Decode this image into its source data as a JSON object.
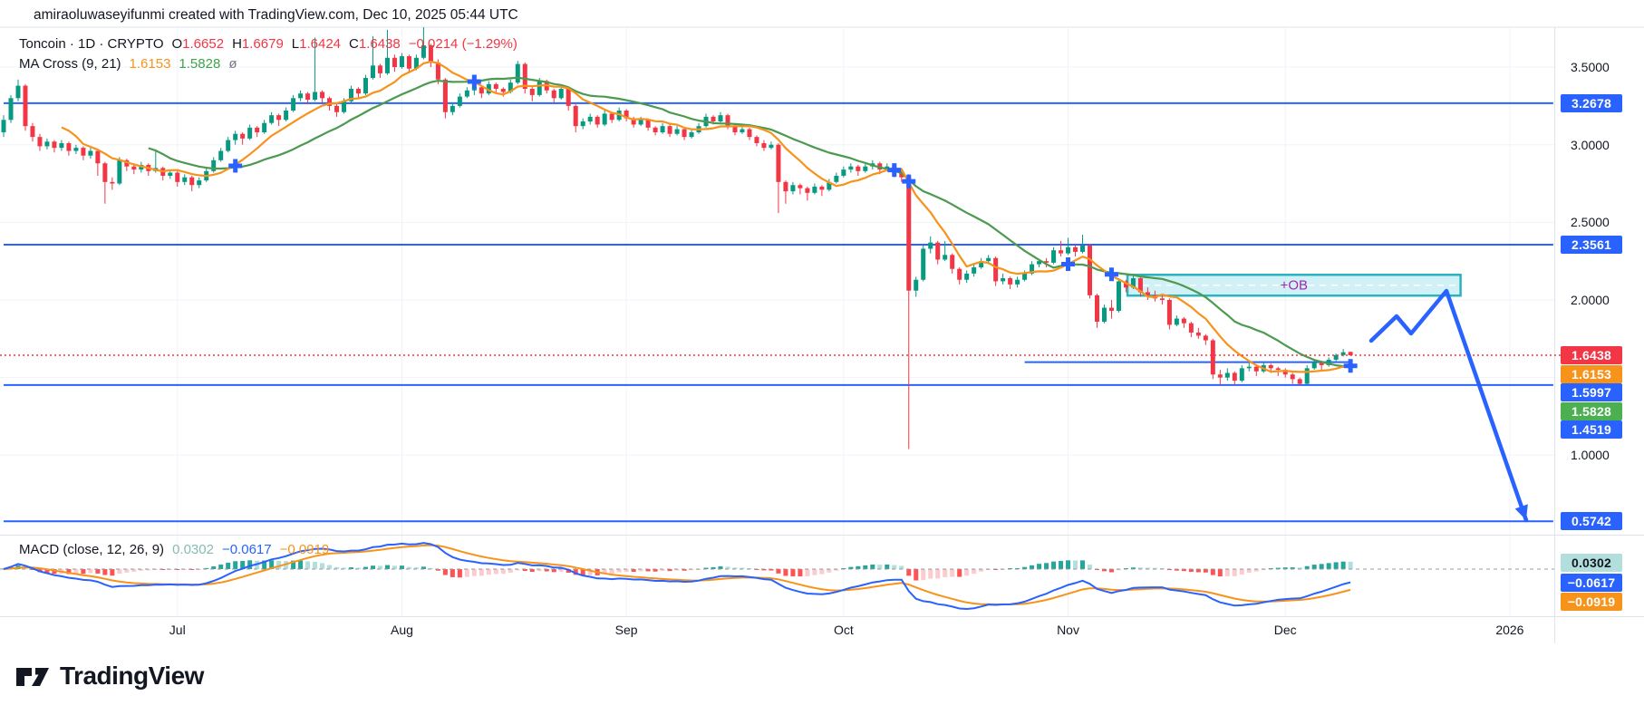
{
  "header": {
    "credit": "amiraoluwaseyifunmi created with TradingView.com, Dec 10, 2025 05:44 UTC"
  },
  "legend": {
    "symbol": {
      "title": "Toncoin · 1D · CRYPTO",
      "o_key": "O",
      "o_val": "1.6652",
      "h_key": "H",
      "h_val": "1.6679",
      "l_key": "L",
      "l_val": "1.6424",
      "c_key": "C",
      "c_val": "1.6438",
      "change": "−0.0214 (−1.29%)"
    },
    "ma": {
      "title": "MA Cross (9, 21)",
      "fast_val": "1.6153",
      "slow_val": "1.5828",
      "more": "ø"
    }
  },
  "macd_legend": {
    "title": "MACD (close, 12, 26, 9)",
    "hist_val": "0.0302",
    "macd_val": "−0.0617",
    "signal_val": "−0.0919"
  },
  "watermark": {
    "text": "TradingView"
  },
  "colors": {
    "up": "#089981",
    "down": "#F23645",
    "level_blue": "#2962FF",
    "ma_fast": "#F7931A",
    "ma_slow": "#4C9950",
    "macd_line": "#2962FF",
    "signal_line": "#F7931A",
    "hist_pos": "#26A69A",
    "hist_pos_weak": "#B2DFDB",
    "hist_neg": "#FF5252",
    "hist_neg_weak": "#FCCBCD",
    "ob_border": "#2BB3C0",
    "ob_fill": "rgba(76,200,220,0.25)",
    "ob_text": "#9C27B0",
    "grid": "#F0F3FA",
    "separator": "#E0E3EB",
    "current_dotted": "#F23645"
  },
  "price_axis": {
    "ticks": [
      {
        "text": "3.5000",
        "price": 3.5
      },
      {
        "text": "3.0000",
        "price": 3.0
      },
      {
        "text": "2.5000",
        "price": 2.5
      },
      {
        "text": "2.0000",
        "price": 2.0
      },
      {
        "text": "1.0000",
        "price": 1.0
      }
    ]
  },
  "time_axis": {
    "labels": [
      {
        "text": "Jul",
        "day": 24
      },
      {
        "text": "Aug",
        "day": 55
      },
      {
        "text": "Sep",
        "day": 86
      },
      {
        "text": "Oct",
        "day": 116
      },
      {
        "text": "Nov",
        "day": 147
      },
      {
        "text": "Dec",
        "day": 177
      },
      {
        "text": "2026",
        "day": 208
      }
    ]
  },
  "chart_data": {
    "type": "candlestick",
    "title": "Toncoin · 1D · CRYPTO",
    "ylim": [
      0.45,
      3.78
    ],
    "grid": true,
    "levels": [
      {
        "label": "3.2678",
        "price": 3.2678,
        "color": "#2962FF",
        "x1_day": 0,
        "x2_day": 214
      },
      {
        "label": "2.3561",
        "price": 2.3561,
        "color": "#2962FF",
        "x1_day": 0,
        "x2_day": 214
      },
      {
        "label": "1.5997",
        "price": 1.5997,
        "color": "#2962FF",
        "x1_day": 141,
        "x2_day": 186
      },
      {
        "label": "1.4519",
        "price": 1.4519,
        "color": "#2962FF",
        "x1_day": 0,
        "x2_day": 214
      },
      {
        "label": "0.5742",
        "price": 0.5742,
        "color": "#2962FF",
        "x1_day": 0,
        "x2_day": 214
      }
    ],
    "current_price": {
      "label": "1.6438",
      "price": 1.6438,
      "color": "#F23645"
    },
    "ma_badges": [
      {
        "label": "1.6153",
        "price": 1.6153,
        "color": "#F7931A"
      },
      {
        "label": "1.5828",
        "price": 1.5828,
        "color": "#4CAF50"
      }
    ],
    "ob_box": {
      "label": "+OB",
      "price_top": 2.162,
      "price_bottom": 2.028,
      "day_start": 155.2,
      "day_end": 201.2
    },
    "projection_arrow": {
      "points": [
        [
          1513,
          376
        ],
        [
          1541,
          349
        ],
        [
          1557,
          368
        ],
        [
          1596,
          321
        ],
        [
          1684,
          574
        ]
      ]
    },
    "macd": {
      "params": [
        12,
        26,
        9
      ],
      "source": "close",
      "badges": [
        {
          "label": "0.0302",
          "bg": "#B2DFDB",
          "fg": "#131722"
        },
        {
          "label": "−0.0617",
          "bg": "#2962FF",
          "fg": "#ffffff"
        },
        {
          "label": "−0.0919",
          "bg": "#F7931A",
          "fg": "#ffffff"
        }
      ]
    },
    "candles": [
      [
        3.08,
        3.19,
        3.05,
        3.16
      ],
      [
        3.16,
        3.32,
        3.14,
        3.3
      ],
      [
        3.3,
        3.42,
        3.28,
        3.38
      ],
      [
        3.38,
        3.39,
        3.09,
        3.12
      ],
      [
        3.12,
        3.14,
        3.02,
        3.05
      ],
      [
        3.05,
        3.07,
        2.96,
        2.99
      ],
      [
        2.99,
        3.04,
        2.97,
        3.02
      ],
      [
        3.02,
        3.03,
        2.95,
        2.98
      ],
      [
        2.98,
        3.03,
        2.96,
        3.01
      ],
      [
        3.01,
        3.02,
        2.93,
        2.96
      ],
      [
        2.96,
        3.0,
        2.94,
        2.98
      ],
      [
        2.98,
        2.99,
        2.9,
        2.93
      ],
      [
        2.93,
        2.98,
        2.91,
        2.96
      ],
      [
        2.96,
        2.97,
        2.8,
        2.88
      ],
      [
        2.88,
        2.89,
        2.62,
        2.76
      ],
      [
        2.76,
        2.79,
        2.71,
        2.75
      ],
      [
        2.75,
        2.92,
        2.74,
        2.9
      ],
      [
        2.9,
        2.91,
        2.83,
        2.86
      ],
      [
        2.86,
        2.88,
        2.81,
        2.84
      ],
      [
        2.84,
        2.89,
        2.82,
        2.87
      ],
      [
        2.87,
        2.88,
        2.8,
        2.83
      ],
      [
        2.83,
        2.97,
        2.82,
        2.85
      ],
      [
        2.85,
        2.86,
        2.77,
        2.8
      ],
      [
        2.8,
        2.84,
        2.78,
        2.82
      ],
      [
        2.82,
        2.83,
        2.73,
        2.76
      ],
      [
        2.76,
        2.81,
        2.74,
        2.79
      ],
      [
        2.79,
        2.8,
        2.7,
        2.74
      ],
      [
        2.74,
        2.79,
        2.72,
        2.77
      ],
      [
        2.77,
        2.85,
        2.76,
        2.83
      ],
      [
        2.83,
        2.92,
        2.82,
        2.9
      ],
      [
        2.9,
        2.98,
        2.89,
        2.96
      ],
      [
        2.96,
        3.05,
        2.95,
        3.03
      ],
      [
        3.03,
        3.09,
        3.0,
        3.07
      ],
      [
        3.07,
        3.08,
        3.0,
        3.04
      ],
      [
        3.04,
        3.13,
        3.03,
        3.11
      ],
      [
        3.11,
        3.12,
        3.05,
        3.08
      ],
      [
        3.08,
        3.16,
        3.07,
        3.14
      ],
      [
        3.14,
        3.21,
        3.13,
        3.19
      ],
      [
        3.19,
        3.2,
        3.12,
        3.16
      ],
      [
        3.16,
        3.24,
        3.15,
        3.22
      ],
      [
        3.22,
        3.32,
        3.21,
        3.3
      ],
      [
        3.3,
        3.35,
        3.28,
        3.33
      ],
      [
        3.33,
        3.34,
        3.26,
        3.29
      ],
      [
        3.29,
        3.69,
        3.28,
        3.34
      ],
      [
        3.34,
        3.35,
        3.27,
        3.3
      ],
      [
        3.3,
        3.31,
        3.22,
        3.25
      ],
      [
        3.25,
        3.27,
        3.18,
        3.21
      ],
      [
        3.21,
        3.3,
        3.2,
        3.28
      ],
      [
        3.28,
        3.38,
        3.27,
        3.36
      ],
      [
        3.36,
        3.37,
        3.3,
        3.33
      ],
      [
        3.33,
        3.45,
        3.32,
        3.43
      ],
      [
        3.43,
        3.7,
        3.42,
        3.51
      ],
      [
        3.51,
        3.52,
        3.43,
        3.46
      ],
      [
        3.46,
        3.74,
        3.45,
        3.56
      ],
      [
        3.56,
        3.58,
        3.47,
        3.5
      ],
      [
        3.5,
        3.59,
        3.49,
        3.57
      ],
      [
        3.57,
        3.58,
        3.46,
        3.49
      ],
      [
        3.49,
        3.58,
        3.48,
        3.56
      ],
      [
        3.56,
        3.76,
        3.55,
        3.64
      ],
      [
        3.64,
        3.65,
        3.5,
        3.53
      ],
      [
        3.53,
        3.55,
        3.39,
        3.42
      ],
      [
        3.42,
        3.43,
        3.17,
        3.21
      ],
      [
        3.21,
        3.27,
        3.19,
        3.25
      ],
      [
        3.25,
        3.33,
        3.24,
        3.31
      ],
      [
        3.31,
        3.37,
        3.3,
        3.35
      ],
      [
        3.35,
        3.39,
        3.32,
        3.37
      ],
      [
        3.37,
        3.38,
        3.3,
        3.33
      ],
      [
        3.33,
        3.41,
        3.32,
        3.39
      ],
      [
        3.39,
        3.4,
        3.33,
        3.36
      ],
      [
        3.36,
        3.37,
        3.31,
        3.34
      ],
      [
        3.34,
        3.42,
        3.33,
        3.4
      ],
      [
        3.4,
        3.54,
        3.39,
        3.52
      ],
      [
        3.52,
        3.53,
        3.33,
        3.36
      ],
      [
        3.36,
        3.37,
        3.28,
        3.32
      ],
      [
        3.32,
        3.43,
        3.31,
        3.41
      ],
      [
        3.41,
        3.42,
        3.33,
        3.35
      ],
      [
        3.35,
        3.36,
        3.27,
        3.3
      ],
      [
        3.3,
        3.38,
        3.29,
        3.36
      ],
      [
        3.36,
        3.37,
        3.22,
        3.25
      ],
      [
        3.25,
        3.26,
        3.08,
        3.12
      ],
      [
        3.12,
        3.17,
        3.1,
        3.15
      ],
      [
        3.15,
        3.2,
        3.13,
        3.18
      ],
      [
        3.18,
        3.19,
        3.11,
        3.13
      ],
      [
        3.13,
        3.22,
        3.12,
        3.2
      ],
      [
        3.2,
        3.21,
        3.14,
        3.16
      ],
      [
        3.16,
        3.24,
        3.15,
        3.22
      ],
      [
        3.22,
        3.23,
        3.15,
        3.17
      ],
      [
        3.17,
        3.18,
        3.11,
        3.13
      ],
      [
        3.13,
        3.18,
        3.12,
        3.16
      ],
      [
        3.16,
        3.17,
        3.09,
        3.11
      ],
      [
        3.11,
        3.12,
        3.06,
        3.08
      ],
      [
        3.08,
        3.14,
        3.07,
        3.12
      ],
      [
        3.12,
        3.13,
        3.05,
        3.07
      ],
      [
        3.07,
        3.12,
        3.06,
        3.1
      ],
      [
        3.1,
        3.11,
        3.03,
        3.05
      ],
      [
        3.05,
        3.1,
        3.04,
        3.08
      ],
      [
        3.08,
        3.14,
        3.07,
        3.12
      ],
      [
        3.12,
        3.2,
        3.11,
        3.18
      ],
      [
        3.18,
        3.19,
        3.13,
        3.15
      ],
      [
        3.15,
        3.21,
        3.14,
        3.19
      ],
      [
        3.19,
        3.2,
        3.1,
        3.12
      ],
      [
        3.12,
        3.13,
        3.06,
        3.08
      ],
      [
        3.08,
        3.12,
        3.07,
        3.1
      ],
      [
        3.1,
        3.11,
        3.03,
        3.05
      ],
      [
        3.05,
        3.06,
        2.99,
        3.01
      ],
      [
        3.01,
        3.03,
        2.96,
        2.98
      ],
      [
        2.98,
        3.02,
        2.97,
        3.0
      ],
      [
        3.0,
        3.01,
        2.56,
        2.76
      ],
      [
        2.76,
        2.77,
        2.62,
        2.7
      ],
      [
        2.7,
        2.76,
        2.68,
        2.74
      ],
      [
        2.74,
        2.75,
        2.68,
        2.72
      ],
      [
        2.72,
        2.73,
        2.64,
        2.69
      ],
      [
        2.69,
        2.75,
        2.68,
        2.73
      ],
      [
        2.73,
        2.74,
        2.67,
        2.71
      ],
      [
        2.71,
        2.78,
        2.7,
        2.76
      ],
      [
        2.76,
        2.82,
        2.75,
        2.8
      ],
      [
        2.8,
        2.86,
        2.79,
        2.84
      ],
      [
        2.84,
        2.88,
        2.82,
        2.86
      ],
      [
        2.86,
        2.87,
        2.8,
        2.83
      ],
      [
        2.83,
        2.88,
        2.82,
        2.86
      ],
      [
        2.86,
        2.9,
        2.84,
        2.88
      ],
      [
        2.88,
        2.89,
        2.81,
        2.84
      ],
      [
        2.84,
        2.88,
        2.83,
        2.86
      ],
      [
        2.86,
        2.87,
        2.79,
        2.82
      ],
      [
        2.82,
        2.83,
        2.76,
        2.79
      ],
      [
        2.79,
        2.81,
        1.04,
        2.06
      ],
      [
        2.06,
        2.15,
        2.02,
        2.13
      ],
      [
        2.13,
        2.35,
        2.12,
        2.33
      ],
      [
        2.33,
        2.41,
        2.3,
        2.37
      ],
      [
        2.37,
        2.38,
        2.23,
        2.26
      ],
      [
        2.26,
        2.38,
        2.25,
        2.29
      ],
      [
        2.29,
        2.3,
        2.17,
        2.2
      ],
      [
        2.2,
        2.21,
        2.1,
        2.13
      ],
      [
        2.13,
        2.19,
        2.11,
        2.17
      ],
      [
        2.17,
        2.23,
        2.15,
        2.21
      ],
      [
        2.21,
        2.27,
        2.2,
        2.25
      ],
      [
        2.25,
        2.29,
        2.23,
        2.27
      ],
      [
        2.27,
        2.28,
        2.09,
        2.12
      ],
      [
        2.12,
        2.17,
        2.1,
        2.14
      ],
      [
        2.14,
        2.15,
        2.07,
        2.1
      ],
      [
        2.1,
        2.15,
        2.08,
        2.13
      ],
      [
        2.13,
        2.19,
        2.12,
        2.17
      ],
      [
        2.17,
        2.25,
        2.16,
        2.23
      ],
      [
        2.23,
        2.26,
        2.21,
        2.25
      ],
      [
        2.25,
        2.27,
        2.21,
        2.24
      ],
      [
        2.24,
        2.34,
        2.23,
        2.32
      ],
      [
        2.32,
        2.38,
        2.28,
        2.3
      ],
      [
        2.3,
        2.4,
        2.29,
        2.34
      ],
      [
        2.34,
        2.35,
        2.28,
        2.31
      ],
      [
        2.31,
        2.42,
        2.3,
        2.35
      ],
      [
        2.35,
        2.36,
        2.01,
        2.03
      ],
      [
        2.03,
        2.04,
        1.82,
        1.86
      ],
      [
        1.86,
        1.97,
        1.85,
        1.95
      ],
      [
        1.95,
        2.0,
        1.88,
        1.93
      ],
      [
        1.93,
        2.14,
        1.92,
        2.12
      ],
      [
        2.12,
        2.13,
        2.05,
        2.08
      ],
      [
        2.08,
        2.16,
        2.07,
        2.14
      ],
      [
        2.14,
        2.15,
        2.02,
        2.05
      ],
      [
        2.05,
        2.08,
        2.0,
        2.03
      ],
      [
        2.03,
        2.06,
        1.99,
        2.01
      ],
      [
        2.01,
        2.04,
        1.97,
        2.0
      ],
      [
        2.0,
        2.01,
        1.81,
        1.84
      ],
      [
        1.84,
        1.9,
        1.83,
        1.88
      ],
      [
        1.88,
        1.89,
        1.82,
        1.85
      ],
      [
        1.85,
        1.86,
        1.76,
        1.79
      ],
      [
        1.79,
        1.82,
        1.75,
        1.77
      ],
      [
        1.77,
        1.78,
        1.71,
        1.74
      ],
      [
        1.74,
        1.75,
        1.49,
        1.52
      ],
      [
        1.52,
        1.55,
        1.452,
        1.5
      ],
      [
        1.5,
        1.56,
        1.48,
        1.53
      ],
      [
        1.53,
        1.54,
        1.452,
        1.48
      ],
      [
        1.48,
        1.58,
        1.47,
        1.56
      ],
      [
        1.56,
        1.6,
        1.54,
        1.57
      ],
      [
        1.57,
        1.58,
        1.51,
        1.54
      ],
      [
        1.54,
        1.6,
        1.53,
        1.58
      ],
      [
        1.58,
        1.59,
        1.53,
        1.56
      ],
      [
        1.56,
        1.57,
        1.51,
        1.55
      ],
      [
        1.55,
        1.56,
        1.5,
        1.52
      ],
      [
        1.52,
        1.53,
        1.46,
        1.49
      ],
      [
        1.49,
        1.5,
        1.452,
        1.46
      ],
      [
        1.46,
        1.58,
        1.455,
        1.56
      ],
      [
        1.56,
        1.62,
        1.55,
        1.6
      ],
      [
        1.6,
        1.61,
        1.55,
        1.58
      ],
      [
        1.58,
        1.63,
        1.57,
        1.615
      ],
      [
        1.615,
        1.655,
        1.605,
        1.645
      ],
      [
        1.645,
        1.684,
        1.635,
        1.663
      ],
      [
        1.6652,
        1.6679,
        1.6424,
        1.6438
      ]
    ]
  }
}
